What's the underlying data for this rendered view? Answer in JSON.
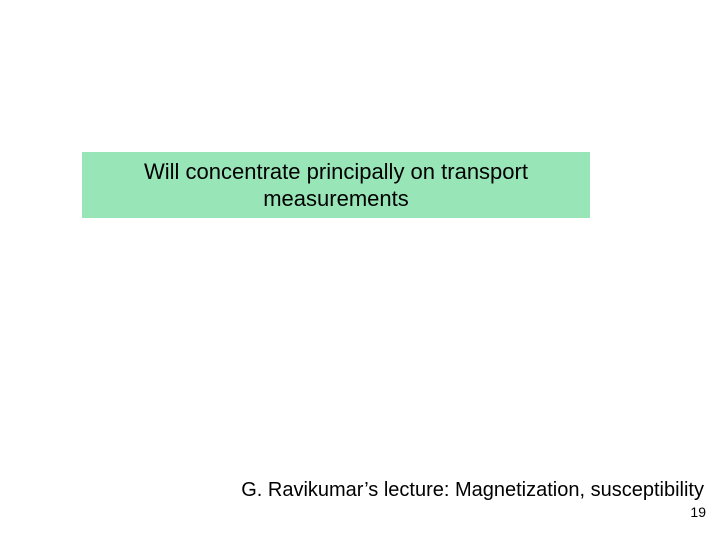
{
  "slide": {
    "highlight_box": {
      "text": "Will concentrate principally on transport measurements",
      "background_color": "#98e6b8",
      "text_color": "#000000",
      "font_size": 22
    },
    "footer": {
      "text": "G. Ravikumar’s lecture: Magnetization, susceptibility",
      "font_size": 20,
      "text_color": "#000000"
    },
    "page_number": {
      "value": "19",
      "font_size": 14,
      "text_color": "#000000"
    },
    "background_color": "#ffffff"
  }
}
